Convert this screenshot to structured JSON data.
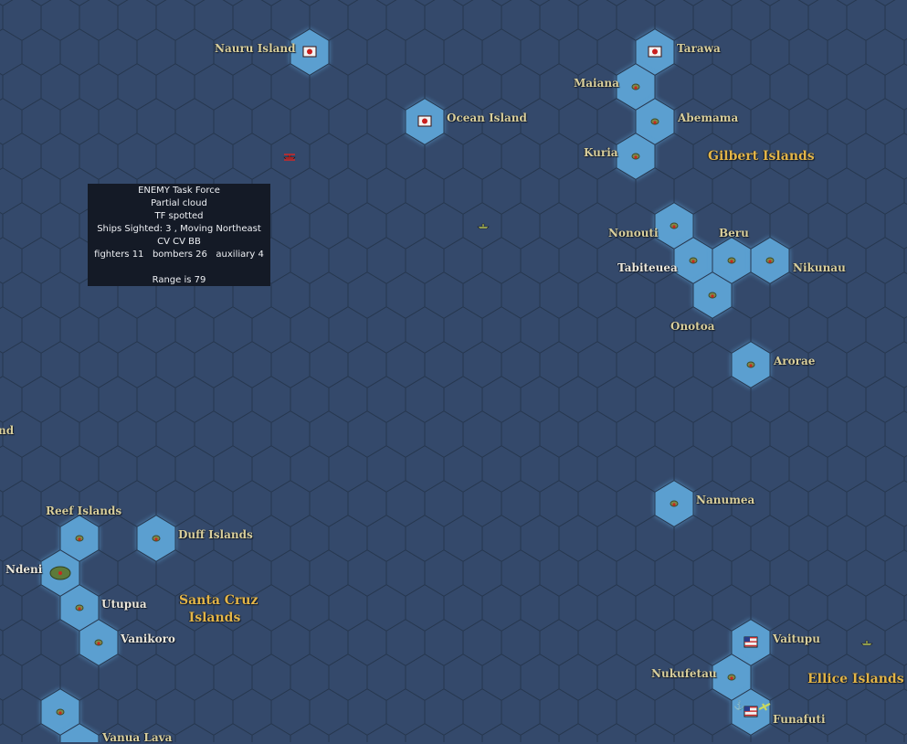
{
  "colors": {
    "ocean": "#34496b",
    "hex_line": "#26374f",
    "shallow": "#5b9fd0",
    "label": "#d9cf9c",
    "region": "#e3b548",
    "tooltip_bg": "#141a26"
  },
  "tooltip": {
    "lines": [
      "ENEMY Task Force",
      "Partial cloud",
      "TF spotted",
      "Ships Sighted: 3 , Moving Northeast",
      "CV CV BB",
      "fighters 11   bombers 26   auxiliary 4",
      "",
      "Range is 79"
    ]
  },
  "islands": {
    "nauru": "Nauru Island",
    "ocean": "Ocean Island",
    "tarawa": "Tarawa",
    "maiana": "Maiana",
    "abemama": "Abemama",
    "kuria": "Kuria",
    "nonouti": "Nonouti",
    "beru": "Beru",
    "tabiteuea": "Tabiteuea",
    "nikunau": "Nikunau",
    "onotoa": "Onotoa",
    "arorae": "Arorae",
    "nanumea": "Nanumea",
    "reef": "Reef Islands",
    "duff": "Duff Islands",
    "ndeni": "Ndeni",
    "utupua": "Utupua",
    "vanikoro": "Vanikoro",
    "vanua_lava": "Vanua Lava",
    "vaitupu": "Vaitupu",
    "nukufetau": "Nukufetau",
    "funafuti": "Funafuti",
    "partial_left": "nd"
  },
  "regions": {
    "gilbert": "Gilbert Islands",
    "santa_cruz_1": "Santa Cruz",
    "santa_cruz_2": "Islands",
    "ellice": "Ellice Islands"
  },
  "markers": {
    "japanese_flag": [
      "Nauru Island",
      "Ocean Island",
      "Tarawa"
    ],
    "us_flag": [
      "Vaitupu",
      "Funafuti"
    ],
    "enemy_task_force_icon": "red-ship-icon",
    "friendly_task_force_icon": "green-ship-icon",
    "base_icons": [
      "anchor-icon",
      "airfield-icon"
    ]
  }
}
